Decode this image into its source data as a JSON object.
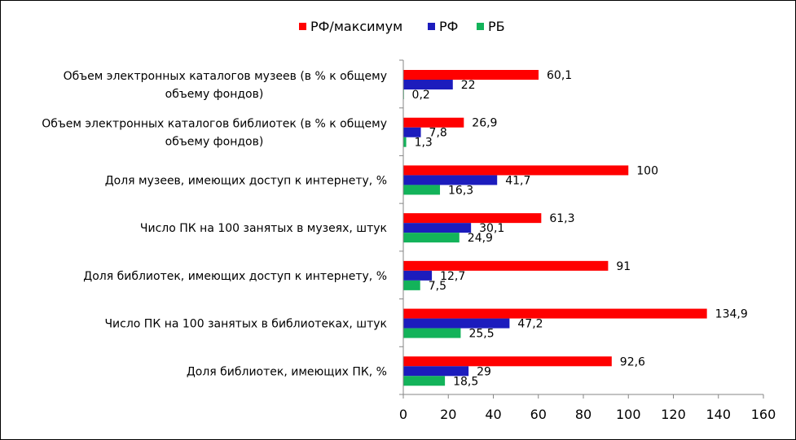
{
  "chart_data": {
    "type": "bar",
    "orientation": "horizontal",
    "title": "",
    "xlabel": "",
    "ylabel": "",
    "xlim": [
      0,
      160
    ],
    "xticks": [
      0,
      20,
      40,
      60,
      80,
      100,
      120,
      140,
      160
    ],
    "grid": false,
    "legend_position": "top",
    "categories": [
      [
        "Объем электронных каталогов музеев (в % к общему",
        "объему фондов)"
      ],
      [
        "Объем электронных каталогов библиотек (в % к общему",
        "объему фондов)"
      ],
      [
        "Доля музеев, имеющих доступ к интернету, %"
      ],
      [
        "Число ПК на 100 занятых в музеях, штук"
      ],
      [
        "Доля библиотек, имеющих доступ к интернету, %"
      ],
      [
        "Число ПК на 100 занятых в библиотеках, штук"
      ],
      [
        "Доля библиотек, имеющих ПК, %"
      ]
    ],
    "series": [
      {
        "name": "РФ/максимум",
        "color": "#ff0000",
        "values": [
          60.1,
          26.9,
          100,
          61.3,
          91,
          134.9,
          92.6
        ],
        "labels": [
          "60,1",
          "26,9",
          "100",
          "61,3",
          "91",
          "134,9",
          "92,6"
        ]
      },
      {
        "name": "РФ",
        "color": "#1c1cbd",
        "values": [
          22,
          7.8,
          41.7,
          30.1,
          12.7,
          47.2,
          29
        ],
        "labels": [
          "22",
          "7,8",
          "41,7",
          "30,1",
          "12,7",
          "47,2",
          "29"
        ]
      },
      {
        "name": "РБ",
        "color": "#13b35a",
        "values": [
          0.2,
          1.3,
          16.3,
          24.9,
          7.5,
          25.5,
          18.5
        ],
        "labels": [
          "0,2",
          "1,3",
          "16,3",
          "24,9",
          "7,5",
          "25,5",
          "18,5"
        ]
      }
    ]
  }
}
